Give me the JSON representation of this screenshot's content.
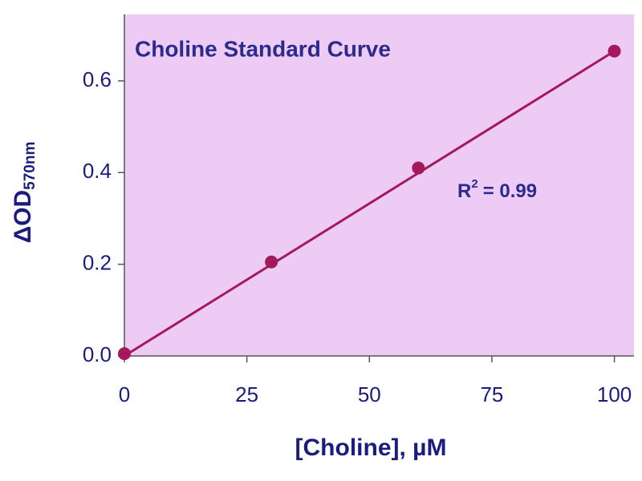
{
  "chart_data": {
    "type": "scatter",
    "title": "Choline Standard Curve",
    "x_label": "[Choline], µM",
    "y_label": "ΔOD",
    "y_label_subscript": "570nm",
    "annotation": {
      "base": "R",
      "superscript": "2",
      "text": "= 0.99"
    },
    "series": [
      {
        "color": "#a3195b",
        "x": [
          0,
          30,
          60,
          100
        ],
        "values": [
          0.005,
          0.205,
          0.41,
          0.665
        ]
      }
    ],
    "fit": {
      "color": "#a3195b",
      "x": [
        0,
        100
      ],
      "values": [
        0,
        0.665
      ]
    },
    "background": "#eecbf4",
    "xlim": [
      0,
      104
    ],
    "ylim": [
      0,
      0.745
    ],
    "xticks": [
      0,
      25,
      50,
      75,
      100
    ],
    "yticks": [
      {
        "value": 0,
        "label": "0.0"
      },
      0.2,
      0.4,
      0.6
    ]
  }
}
